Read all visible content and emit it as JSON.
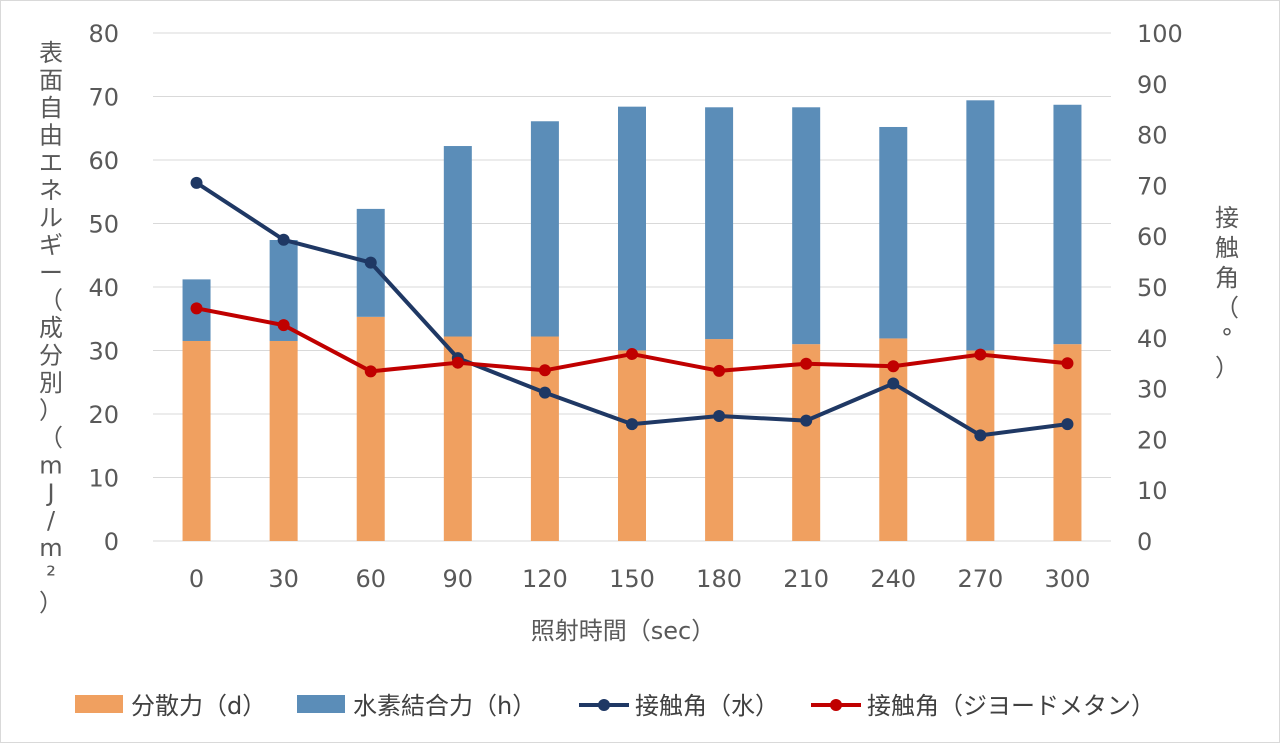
{
  "chart_data": {
    "type": "bar",
    "stacked": true,
    "categories": [
      "0",
      "30",
      "60",
      "90",
      "120",
      "150",
      "180",
      "210",
      "240",
      "270",
      "300"
    ],
    "xlabel": "照射時間（sec）",
    "ylabel": "表面自由エネルギー（成分別）（mJ/m²）",
    "ylabel2": "接触角（°）",
    "ylim": [
      0,
      80
    ],
    "y2lim": [
      0,
      100
    ],
    "yticks": [
      "0",
      "10",
      "20",
      "30",
      "40",
      "50",
      "60",
      "70",
      "80"
    ],
    "y2ticks": [
      "0",
      "10",
      "20",
      "30",
      "40",
      "50",
      "60",
      "70",
      "80",
      "90",
      "100"
    ],
    "grid": true,
    "legend_position": "bottom",
    "series": [
      {
        "name": "分散力（d）",
        "kind": "bar",
        "axis": "left",
        "color": "#f0a060",
        "values": [
          31.5,
          31.5,
          35.3,
          32.2,
          32.2,
          30.0,
          31.8,
          31.0,
          31.9,
          30.0,
          31.0
        ]
      },
      {
        "name": "水素結合力（h）",
        "kind": "bar",
        "axis": "left",
        "color": "#5b8db8",
        "values": [
          9.7,
          15.9,
          17.0,
          30.0,
          33.9,
          38.4,
          36.5,
          37.3,
          33.3,
          39.4,
          37.7
        ]
      },
      {
        "name": "接触角（水）",
        "kind": "line",
        "axis": "right",
        "color": "#1f3864",
        "values": [
          70.5,
          59.3,
          54.8,
          36.0,
          29.2,
          23.0,
          24.6,
          23.7,
          31.0,
          20.8,
          23.0
        ]
      },
      {
        "name": "接触角（ジヨードメタン）",
        "kind": "line",
        "axis": "right",
        "color": "#c00000",
        "values": [
          45.8,
          42.5,
          33.4,
          35.1,
          33.6,
          36.8,
          33.5,
          34.9,
          34.4,
          36.7,
          35.0
        ]
      }
    ]
  }
}
